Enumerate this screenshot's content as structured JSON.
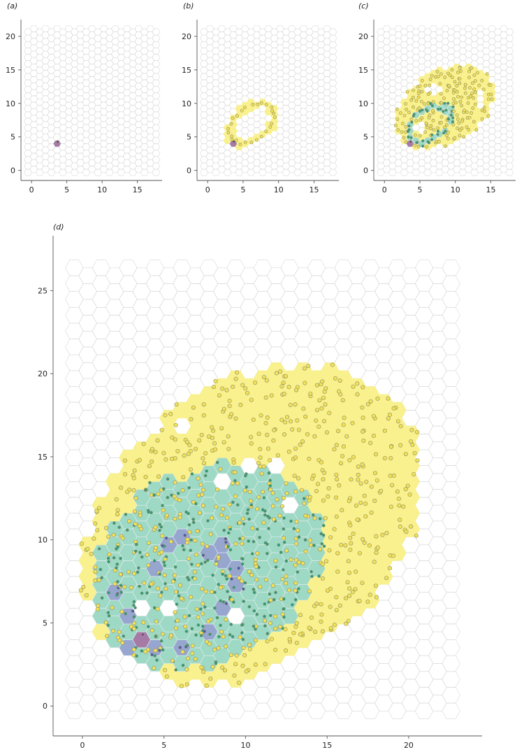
{
  "chart_data": [
    {
      "panel": "a",
      "label": "(a)",
      "type": "scatter",
      "title": "",
      "xlabel": "",
      "ylabel": "",
      "xlim": [
        -1.5,
        18.5
      ],
      "ylim": [
        -1.5,
        22.5
      ],
      "xticks": [
        "0",
        "5",
        "10",
        "15"
      ],
      "yticks": [
        "0",
        "5",
        "10",
        "15",
        "20"
      ],
      "grid_extent": {
        "x": [
          -0.5,
          17.8
        ],
        "y": [
          -0.3,
          21.4
        ]
      },
      "origin": {
        "x": 3.7,
        "y": 4.3
      },
      "tiers": 0
    },
    {
      "panel": "b",
      "label": "(b)",
      "type": "scatter",
      "title": "",
      "xlabel": "",
      "ylabel": "",
      "xlim": [
        -1.5,
        18.5
      ],
      "ylim": [
        -1.5,
        22.5
      ],
      "xticks": [
        "0",
        "5",
        "10",
        "15"
      ],
      "yticks": [
        "0",
        "5",
        "10",
        "15",
        "20"
      ],
      "grid_extent": {
        "x": [
          -0.5,
          17.8
        ],
        "y": [
          -0.3,
          21.4
        ]
      },
      "origin": {
        "x": 3.7,
        "y": 4.3
      },
      "tiers": 1,
      "ring": {
        "center": [
          6.2,
          7.0
        ],
        "rx": 3.6,
        "ry": 2.4,
        "angle": 40,
        "count": 26
      }
    },
    {
      "panel": "c",
      "label": "(c)",
      "type": "scatter",
      "title": "",
      "xlabel": "",
      "ylabel": "",
      "xlim": [
        -1.5,
        18.5
      ],
      "ylim": [
        -1.5,
        22.5
      ],
      "xticks": [
        "0",
        "5",
        "10",
        "15"
      ],
      "yticks": [
        "0",
        "5",
        "10",
        "15",
        "20"
      ],
      "grid_extent": {
        "x": [
          -0.5,
          17.8
        ],
        "y": [
          -0.3,
          21.4
        ]
      },
      "origin": {
        "x": 3.7,
        "y": 4.3
      },
      "tiers": 2,
      "ellipse": {
        "center": [
          8.5,
          9.5
        ],
        "rx": 7.8,
        "ry": 5.2,
        "angle": 35
      },
      "inner_ring": {
        "center": [
          6.4,
          6.9
        ],
        "rx": 3.4,
        "ry": 2.3,
        "angle": 40
      }
    },
    {
      "panel": "d",
      "label": "(d)",
      "type": "scatter",
      "title": "",
      "xlabel": "",
      "ylabel": "",
      "xlim": [
        -1.8,
        24.5
      ],
      "ylim": [
        -1.8,
        28.3
      ],
      "xticks": [
        "0",
        "5",
        "10",
        "15",
        "20"
      ],
      "yticks": [
        "0",
        "5",
        "10",
        "15",
        "20",
        "25"
      ],
      "grid_extent": {
        "x": [
          -0.5,
          22.8
        ],
        "y": [
          -0.3,
          26.8
        ]
      },
      "origin": {
        "x": 3.7,
        "y": 4.3
      },
      "tiers": 3,
      "yellow_region": {
        "center": [
          10.5,
          11.0
        ],
        "rx": 11.5,
        "ry": 8.3,
        "angle": 38
      },
      "green_region": {
        "center": [
          7.6,
          8.3
        ],
        "rx": 7.4,
        "ry": 5.8,
        "angle": 30
      },
      "blue_cells": [
        [
          3.7,
          4.3
        ],
        [
          2.8,
          5.6
        ],
        [
          2.8,
          3.6
        ],
        [
          4.7,
          3.2
        ],
        [
          6.5,
          3.7
        ],
        [
          7.4,
          4.3
        ],
        [
          8.4,
          5.6
        ],
        [
          5.6,
          9.5
        ],
        [
          6.5,
          10.1
        ],
        [
          7.5,
          9.5
        ],
        [
          8.4,
          10.1
        ],
        [
          8.4,
          8.8
        ],
        [
          9.4,
          8.2
        ],
        [
          9.3,
          7.5
        ],
        [
          4.6,
          8.2
        ],
        [
          1.9,
          6.9
        ]
      ],
      "holes": [
        [
          6.5,
          17.0
        ],
        [
          5.6,
          6.2
        ],
        [
          3.7,
          5.6
        ],
        [
          9.4,
          5.6
        ],
        [
          10.2,
          14.7
        ],
        [
          12.1,
          14.1
        ],
        [
          13.1,
          12.1
        ],
        [
          8.4,
          13.4
        ]
      ]
    }
  ],
  "colors": {
    "hex_edge": "#d8d8d8",
    "yellow": "#f9f08e",
    "green": "#9ed9c5",
    "blue": "#97a6cf",
    "purple": "#a57ba6",
    "point_yellow": "#f2e255",
    "point_edge": "#8a8a6a",
    "point_green": "#2e9c78",
    "point_blue": "#4a5ba8",
    "axis": "#555555"
  }
}
